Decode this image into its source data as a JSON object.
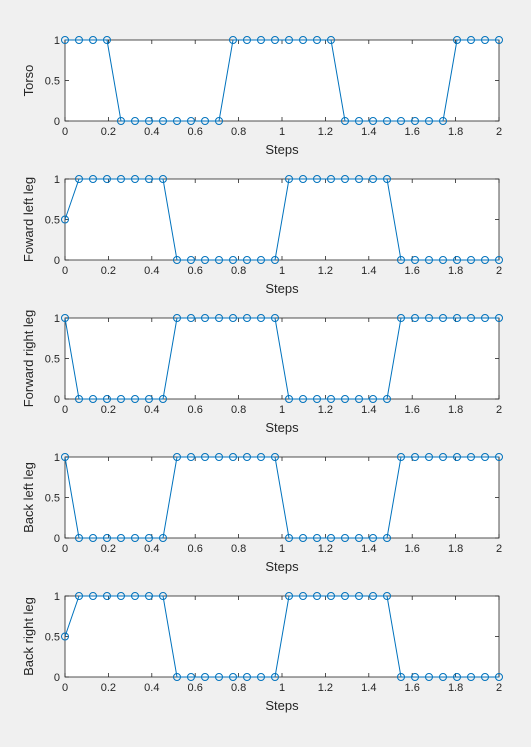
{
  "chart_data": [
    {
      "type": "line",
      "xlabel": "Steps",
      "ylabel": "Torso",
      "xlim": [
        0,
        2
      ],
      "ylim": [
        0,
        1
      ],
      "xticks": [
        "0",
        "0.2",
        "0.4",
        "0.6",
        "0.8",
        "1",
        "1.2",
        "1.4",
        "1.6",
        "1.8",
        "2"
      ],
      "yticks": [
        "0",
        "0.5",
        "1"
      ],
      "grid": false,
      "marker": "circle",
      "color": "#0072bd",
      "x": [
        0,
        0.0645,
        0.129,
        0.1935,
        0.258,
        0.3226,
        0.3871,
        0.4516,
        0.5161,
        0.5806,
        0.6452,
        0.7097,
        0.7742,
        0.8387,
        0.9032,
        0.9677,
        1.0323,
        1.0968,
        1.1613,
        1.2258,
        1.2903,
        1.3548,
        1.4194,
        1.4839,
        1.5484,
        1.6129,
        1.6774,
        1.7419,
        1.8065,
        1.871,
        1.9355,
        2.0
      ],
      "values": [
        1,
        1,
        1,
        1,
        0,
        0,
        0,
        0,
        0,
        0,
        0,
        0,
        1,
        1,
        1,
        1,
        1,
        1,
        1,
        1,
        0,
        0,
        0,
        0,
        0,
        0,
        0,
        0,
        1,
        1,
        1,
        1
      ]
    },
    {
      "type": "line",
      "xlabel": "Steps",
      "ylabel": "Foward left leg",
      "xlim": [
        0,
        2
      ],
      "ylim": [
        0,
        1
      ],
      "xticks": [
        "0",
        "0.2",
        "0.4",
        "0.6",
        "0.8",
        "1",
        "1.2",
        "1.4",
        "1.6",
        "1.8",
        "2"
      ],
      "yticks": [
        "0",
        "0.5",
        "1"
      ],
      "grid": false,
      "marker": "circle",
      "color": "#0072bd",
      "x": [
        0,
        0.0645,
        0.129,
        0.1935,
        0.258,
        0.3226,
        0.3871,
        0.4516,
        0.5161,
        0.5806,
        0.6452,
        0.7097,
        0.7742,
        0.8387,
        0.9032,
        0.9677,
        1.0323,
        1.0968,
        1.1613,
        1.2258,
        1.2903,
        1.3548,
        1.4194,
        1.4839,
        1.5484,
        1.6129,
        1.6774,
        1.7419,
        1.8065,
        1.871,
        1.9355,
        2.0
      ],
      "values": [
        0.5,
        1,
        1,
        1,
        1,
        1,
        1,
        1,
        0,
        0,
        0,
        0,
        0,
        0,
        0,
        0,
        1,
        1,
        1,
        1,
        1,
        1,
        1,
        1,
        0,
        0,
        0,
        0,
        0,
        0,
        0,
        0
      ]
    },
    {
      "type": "line",
      "xlabel": "Steps",
      "ylabel": "Forward right leg",
      "xlim": [
        0,
        2
      ],
      "ylim": [
        0,
        1
      ],
      "xticks": [
        "0",
        "0.2",
        "0.4",
        "0.6",
        "0.8",
        "1",
        "1.2",
        "1.4",
        "1.6",
        "1.8",
        "2"
      ],
      "yticks": [
        "0",
        "0.5",
        "1"
      ],
      "grid": false,
      "marker": "circle",
      "color": "#0072bd",
      "x": [
        0,
        0.0645,
        0.129,
        0.1935,
        0.258,
        0.3226,
        0.3871,
        0.4516,
        0.5161,
        0.5806,
        0.6452,
        0.7097,
        0.7742,
        0.8387,
        0.9032,
        0.9677,
        1.0323,
        1.0968,
        1.1613,
        1.2258,
        1.2903,
        1.3548,
        1.4194,
        1.4839,
        1.5484,
        1.6129,
        1.6774,
        1.7419,
        1.8065,
        1.871,
        1.9355,
        2.0
      ],
      "values": [
        1,
        0,
        0,
        0,
        0,
        0,
        0,
        0,
        1,
        1,
        1,
        1,
        1,
        1,
        1,
        1,
        0,
        0,
        0,
        0,
        0,
        0,
        0,
        0,
        1,
        1,
        1,
        1,
        1,
        1,
        1,
        1
      ]
    },
    {
      "type": "line",
      "xlabel": "Steps",
      "ylabel": "Back left leg",
      "xlim": [
        0,
        2
      ],
      "ylim": [
        0,
        1
      ],
      "xticks": [
        "0",
        "0.2",
        "0.4",
        "0.6",
        "0.8",
        "1",
        "1.2",
        "1.4",
        "1.6",
        "1.8",
        "2"
      ],
      "yticks": [
        "0",
        "0.5",
        "1"
      ],
      "grid": false,
      "marker": "circle",
      "color": "#0072bd",
      "x": [
        0,
        0.0645,
        0.129,
        0.1935,
        0.258,
        0.3226,
        0.3871,
        0.4516,
        0.5161,
        0.5806,
        0.6452,
        0.7097,
        0.7742,
        0.8387,
        0.9032,
        0.9677,
        1.0323,
        1.0968,
        1.1613,
        1.2258,
        1.2903,
        1.3548,
        1.4194,
        1.4839,
        1.5484,
        1.6129,
        1.6774,
        1.7419,
        1.8065,
        1.871,
        1.9355,
        2.0
      ],
      "values": [
        1,
        0,
        0,
        0,
        0,
        0,
        0,
        0,
        1,
        1,
        1,
        1,
        1,
        1,
        1,
        1,
        0,
        0,
        0,
        0,
        0,
        0,
        0,
        0,
        1,
        1,
        1,
        1,
        1,
        1,
        1,
        1
      ]
    },
    {
      "type": "line",
      "xlabel": "Steps",
      "ylabel": "Back right leg",
      "xlim": [
        0,
        2
      ],
      "ylim": [
        0,
        1
      ],
      "xticks": [
        "0",
        "0.2",
        "0.4",
        "0.6",
        "0.8",
        "1",
        "1.2",
        "1.4",
        "1.6",
        "1.8",
        "2"
      ],
      "yticks": [
        "0",
        "0.5",
        "1"
      ],
      "grid": false,
      "marker": "circle",
      "color": "#0072bd",
      "x": [
        0,
        0.0645,
        0.129,
        0.1935,
        0.258,
        0.3226,
        0.3871,
        0.4516,
        0.5161,
        0.5806,
        0.6452,
        0.7097,
        0.7742,
        0.8387,
        0.9032,
        0.9677,
        1.0323,
        1.0968,
        1.1613,
        1.2258,
        1.2903,
        1.3548,
        1.4194,
        1.4839,
        1.5484,
        1.6129,
        1.6774,
        1.7419,
        1.8065,
        1.871,
        1.9355,
        2.0
      ],
      "values": [
        0.5,
        1,
        1,
        1,
        1,
        1,
        1,
        1,
        0,
        0,
        0,
        0,
        0,
        0,
        0,
        0,
        1,
        1,
        1,
        1,
        1,
        1,
        1,
        1,
        0,
        0,
        0,
        0,
        0,
        0,
        0,
        0
      ]
    }
  ]
}
